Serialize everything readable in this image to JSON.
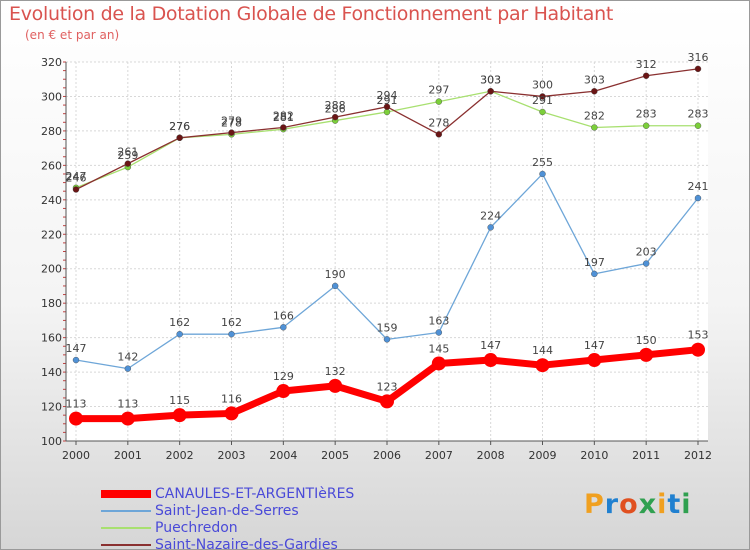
{
  "title": "Evolution de la Dotation Globale de Fonctionnement par Habitant",
  "subtitle": "(en € et par an)",
  "brand": "Proxiti",
  "brand_colors": [
    "#f0a020",
    "#2080d0",
    "#e05020",
    "#30a050",
    "#f0a020",
    "#2080d0",
    "#30a050"
  ],
  "chart_data": {
    "type": "line",
    "title": "Evolution de la Dotation Globale de Fonctionnement par Habitant",
    "subtitle": "(en € et par an)",
    "xlabel": "",
    "ylabel": "",
    "ylim": [
      100,
      320
    ],
    "yticks": [
      "100",
      "120",
      "140",
      "160",
      "180",
      "200",
      "220",
      "240",
      "260",
      "280",
      "300",
      "320"
    ],
    "grid": true,
    "legend_position": "bottom",
    "categories": [
      "2000",
      "2001",
      "2002",
      "2003",
      "2004",
      "2005",
      "2006",
      "2007",
      "2008",
      "2009",
      "2010",
      "2011",
      "2012"
    ],
    "series": [
      {
        "name": "CANAULES-ET-ARGENTIèRES",
        "color": "#ff0000",
        "marker_color": "#ff0000",
        "values": [
          113,
          113,
          115,
          116,
          129,
          132,
          123,
          145,
          147,
          144,
          147,
          150,
          153
        ]
      },
      {
        "name": "Saint-Jean-de-Serres",
        "color": "#6ea6d8",
        "marker_color": "#4f91d6",
        "values": [
          147,
          142,
          162,
          162,
          166,
          190,
          159,
          163,
          224,
          255,
          197,
          203,
          241
        ]
      },
      {
        "name": "Puechredon",
        "color": "#a8e070",
        "marker_color": "#7ccf3a",
        "values": [
          247,
          259,
          276,
          278,
          281,
          286,
          291,
          297,
          303,
          291,
          282,
          283,
          283
        ]
      },
      {
        "name": "Saint-Nazaire-des-Gardies",
        "color": "#8a3030",
        "marker_color": "#6a1515",
        "values": [
          246,
          261,
          276,
          279,
          282,
          288,
          294,
          278,
          303,
          300,
          303,
          312,
          316
        ]
      }
    ]
  }
}
